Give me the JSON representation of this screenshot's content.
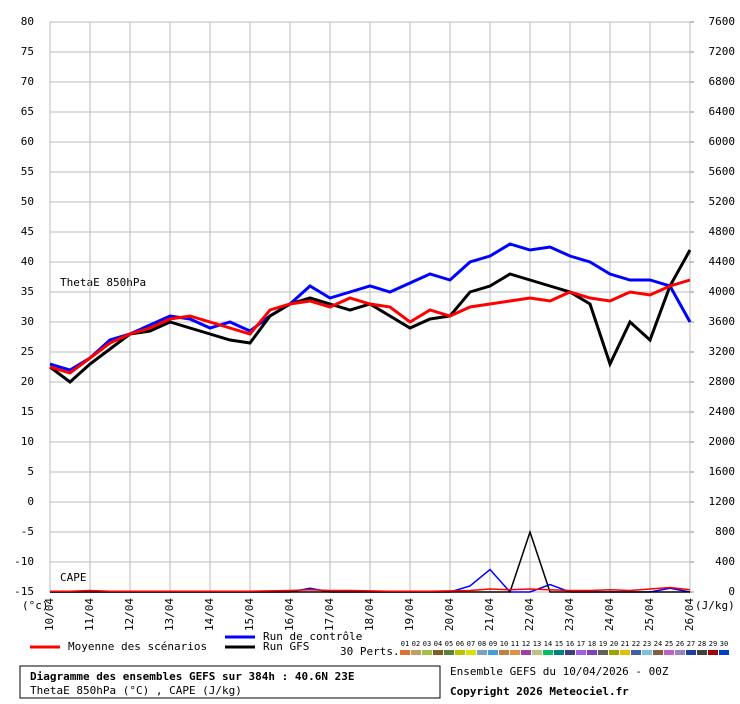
{
  "chart_data": {
    "type": "line",
    "title": "Diagramme des ensembles GEFS sur 384h : 40.6N 23E",
    "subtitle": "ThetaE 850hPa (°C) , CAPE (J/kg)",
    "annotations": {
      "thetae": "ThetaE 850hPa",
      "cape": "CAPE",
      "left_unit": "(°c)",
      "right_unit": "(J/kg)",
      "run_info": "Ensemble GEFS du 10/04/2026 - 00Z",
      "copyright": "Copyright 2026 Meteociel.fr",
      "perts": "30 Perts."
    },
    "x": [
      0,
      12,
      24,
      36,
      48,
      60,
      72,
      84,
      96,
      108,
      120,
      132,
      144,
      156,
      168,
      180,
      192,
      204,
      216,
      228,
      240,
      252,
      264,
      276,
      288,
      300,
      312,
      324,
      336,
      348,
      360,
      372,
      384
    ],
    "xlim": [
      0,
      384
    ],
    "xticks": [
      {
        "value": 0,
        "label": "10/04"
      },
      {
        "value": 24,
        "label": "11/04"
      },
      {
        "value": 48,
        "label": "12/04"
      },
      {
        "value": 72,
        "label": "13/04"
      },
      {
        "value": 96,
        "label": "14/04"
      },
      {
        "value": 120,
        "label": "15/04"
      },
      {
        "value": 144,
        "label": "16/04"
      },
      {
        "value": 168,
        "label": "17/04"
      },
      {
        "value": 192,
        "label": "18/04"
      },
      {
        "value": 216,
        "label": "19/04"
      },
      {
        "value": 240,
        "label": "20/04"
      },
      {
        "value": 264,
        "label": "21/04"
      },
      {
        "value": 288,
        "label": "22/04"
      },
      {
        "value": 312,
        "label": "23/04"
      },
      {
        "value": 336,
        "label": "24/04"
      },
      {
        "value": 360,
        "label": "25/04"
      },
      {
        "value": 384,
        "label": "26/04"
      }
    ],
    "ylim": [
      -15,
      80
    ],
    "yticks": [
      -15,
      -10,
      -5,
      0,
      5,
      10,
      15,
      20,
      25,
      30,
      35,
      40,
      45,
      50,
      55,
      60,
      65,
      70,
      75,
      80
    ],
    "y2lim": [
      0,
      7600
    ],
    "y2ticks": [
      0,
      400,
      800,
      1200,
      1600,
      2000,
      2400,
      2800,
      3200,
      3600,
      4000,
      4400,
      4800,
      5200,
      5600,
      6000,
      6400,
      6800,
      7200,
      7600
    ],
    "grid": true,
    "series": [
      {
        "name": "Run de contrôle",
        "color": "#0000ff",
        "values": [
          23,
          22,
          24,
          27,
          28,
          29.5,
          31,
          30.5,
          29,
          30,
          28.5,
          31,
          33,
          36,
          34,
          35,
          36,
          35,
          36.5,
          38,
          37,
          40,
          41,
          43,
          42,
          42.5,
          41,
          40,
          38,
          37,
          37,
          36,
          30
        ]
      },
      {
        "name": "Run GFS",
        "color": "#000000",
        "values": [
          22.5,
          20,
          23,
          25.5,
          28,
          28.5,
          30,
          29,
          28,
          27,
          26.5,
          31,
          33,
          34,
          33,
          32,
          33,
          31,
          29,
          30.5,
          31,
          35,
          36,
          38,
          37,
          36,
          35,
          33,
          23,
          30,
          27,
          36,
          42
        ]
      },
      {
        "name": "Moyenne des scénarios",
        "color": "#ff0000",
        "values": [
          22.5,
          21.5,
          24,
          26.5,
          28,
          29,
          30.5,
          31,
          30,
          29,
          28,
          32,
          33,
          33.5,
          32.5,
          34,
          33,
          32.5,
          30,
          32,
          31,
          32.5,
          33,
          33.5,
          34,
          33.5,
          35,
          34,
          33.5,
          35,
          34.5,
          36,
          37
        ]
      },
      {
        "color": "#0000ff",
        "axis": "y2",
        "values": [
          0,
          0,
          0,
          0,
          0,
          0,
          0,
          0,
          0,
          0,
          0,
          0,
          0,
          50,
          0,
          0,
          0,
          0,
          0,
          0,
          0,
          80,
          300,
          0,
          0,
          100,
          0,
          0,
          0,
          0,
          0,
          50,
          0
        ]
      },
      {
        "color": "#000000",
        "axis": "y2",
        "values": [
          0,
          0,
          0,
          0,
          0,
          0,
          0,
          0,
          0,
          0,
          0,
          0,
          0,
          0,
          0,
          0,
          0,
          0,
          0,
          0,
          0,
          0,
          0,
          0,
          800,
          0,
          0,
          0,
          0,
          0,
          0,
          0,
          0
        ]
      },
      {
        "color": "#ff0000",
        "axis": "y2",
        "values": [
          10,
          10,
          20,
          10,
          10,
          10,
          10,
          10,
          10,
          10,
          10,
          15,
          20,
          30,
          20,
          20,
          15,
          10,
          10,
          10,
          15,
          20,
          40,
          30,
          40,
          30,
          20,
          20,
          30,
          20,
          40,
          60,
          30
        ]
      }
    ],
    "perts": [
      {
        "name": "01",
        "color": "#e07030"
      },
      {
        "name": "02",
        "color": "#c0a060"
      },
      {
        "name": "03",
        "color": "#a0c040"
      },
      {
        "name": "04",
        "color": "#806020"
      },
      {
        "name": "05",
        "color": "#608040"
      },
      {
        "name": "06",
        "color": "#c0c000"
      },
      {
        "name": "07",
        "color": "#e0e000"
      },
      {
        "name": "08",
        "color": "#80a0c0"
      },
      {
        "name": "09",
        "color": "#40a0e0"
      },
      {
        "name": "10",
        "color": "#c08040"
      },
      {
        "name": "11",
        "color": "#e09040"
      },
      {
        "name": "12",
        "color": "#a040a0"
      },
      {
        "name": "13",
        "color": "#c0c080"
      },
      {
        "name": "14",
        "color": "#00c060"
      },
      {
        "name": "15",
        "color": "#008080"
      },
      {
        "name": "16",
        "color": "#404080"
      },
      {
        "name": "17",
        "color": "#a060e0"
      },
      {
        "name": "18",
        "color": "#8040c0"
      },
      {
        "name": "19",
        "color": "#606060"
      },
      {
        "name": "20",
        "color": "#a0a000"
      },
      {
        "name": "21",
        "color": "#e0c000"
      },
      {
        "name": "22",
        "color": "#4060a0"
      },
      {
        "name": "23",
        "color": "#80c0e0"
      },
      {
        "name": "24",
        "color": "#806040"
      },
      {
        "name": "25",
        "color": "#c060c0"
      },
      {
        "name": "26",
        "color": "#a080c0"
      },
      {
        "name": "27",
        "color": "#2040a0"
      },
      {
        "name": "28",
        "color": "#404040"
      },
      {
        "name": "29",
        "color": "#a00000"
      },
      {
        "name": "30",
        "color": "#0040c0"
      }
    ]
  }
}
